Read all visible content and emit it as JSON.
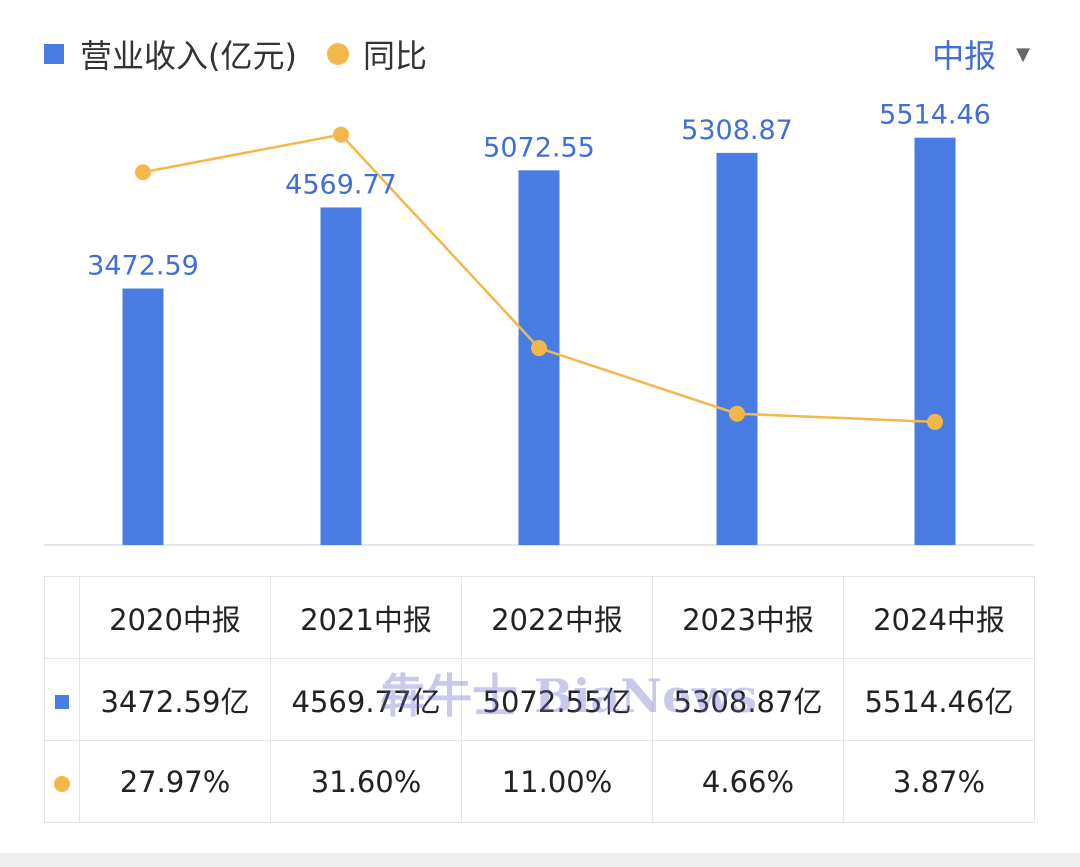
{
  "legend": {
    "revenue_label": "营业收入(亿元)",
    "yoy_label": "同比"
  },
  "period_selector": {
    "label": "中报"
  },
  "colors": {
    "bar": "#4a7de3",
    "line": "#f4b84a",
    "bar_label": "#3f6fd6",
    "yoy_text": "#d94a4a",
    "period_text": "#3f6fd6"
  },
  "chart_data": {
    "type": "bar",
    "categories": [
      "2020中报",
      "2021中报",
      "2022中报",
      "2023中报",
      "2024中报"
    ],
    "series": [
      {
        "name": "营业收入(亿元)",
        "type": "bar",
        "values": [
          3472.59,
          4569.77,
          5072.55,
          5308.87,
          5514.46
        ]
      },
      {
        "name": "同比",
        "type": "line",
        "values": [
          27.97,
          31.6,
          11.0,
          4.66,
          3.87
        ]
      }
    ],
    "bar_labels": [
      "3472.59",
      "4569.77",
      "5072.55",
      "5308.87",
      "5514.46"
    ],
    "legend_position": "top-left"
  },
  "table": {
    "headers": [
      "2020中报",
      "2021中报",
      "2022中报",
      "2023中报",
      "2024中报"
    ],
    "revenue_row": [
      "3472.59亿",
      "4569.77亿",
      "5072.55亿",
      "5308.87亿",
      "5514.46亿"
    ],
    "yoy_row": [
      "27.97%",
      "31.60%",
      "11.00%",
      "4.66%",
      "3.87%"
    ]
  },
  "watermark": "犇牛士 BiaNews"
}
